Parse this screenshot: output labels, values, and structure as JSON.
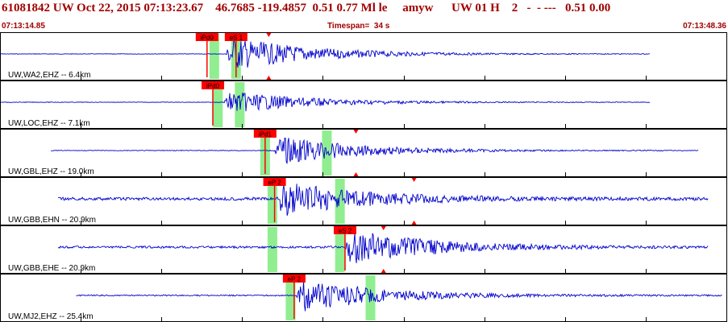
{
  "header": {
    "title": "61081842 UW Oct 22, 2015 07:13:23.67    46.7685 -119.4857  0.51 0.77 Ml le     amyw      UW 01 H    2   -  - ---   0.51 0.00",
    "start_time": "07:13:14.85",
    "timespan": "Timespan=  34 s",
    "end_time": "07:13:48.36"
  },
  "colors": {
    "trace": "#0000cc",
    "header_text": "#a00000",
    "pick_box": "#ff0000",
    "pick_line": "#ff0000",
    "window": "#90ee90",
    "marker": "#ff0000",
    "grid": "#000000",
    "panel_border": "#000000"
  },
  "panels": [
    {
      "label": "UW,WA2,EHZ -- 6.4km",
      "signal_start": 0.0,
      "signal_end": 0.895,
      "noise_amp": 0.012,
      "arrival": 0.31,
      "peak_amp": 0.85,
      "picks": [
        {
          "label": "iPd0",
          "x": 0.285
        },
        {
          "label": "eS 1",
          "x": 0.325
        }
      ],
      "windows": [
        0.295,
        0.325
      ],
      "markers": [
        0.37
      ]
    },
    {
      "label": "UW,LOC,EHZ -- 7.1km",
      "signal_start": 0.0,
      "signal_end": 0.895,
      "noise_amp": 0.012,
      "arrival": 0.308,
      "peak_amp": 0.55,
      "picks": [
        {
          "label": "iPd0",
          "x": 0.293
        }
      ],
      "windows": [
        0.3,
        0.33
      ],
      "markers": []
    },
    {
      "label": "UW,GBL,EHZ -- 19.0km",
      "signal_start": 0.07,
      "signal_end": 0.962,
      "noise_amp": 0.015,
      "arrival": 0.377,
      "peak_amp": 0.7,
      "picks": [
        {
          "label": "iPd1",
          "x": 0.365
        }
      ],
      "windows": [
        0.365,
        0.45
      ],
      "markers": [
        0.49
      ]
    },
    {
      "label": "UW,GBB,EHN -- 20.9km",
      "signal_start": 0.08,
      "signal_end": 0.975,
      "noise_amp": 0.07,
      "arrival": 0.38,
      "peak_amp": 0.85,
      "picks": [
        {
          "label": "eP 2",
          "x": 0.378
        }
      ],
      "windows": [
        0.375,
        0.468
      ],
      "markers": [
        0.57
      ]
    },
    {
      "label": "UW,GBB,EHE -- 20.9km",
      "signal_start": 0.08,
      "signal_end": 0.975,
      "noise_amp": 0.05,
      "arrival": 0.474,
      "peak_amp": 0.85,
      "picks": [
        {
          "label": "eS 2",
          "x": 0.475
        }
      ],
      "windows": [
        0.375,
        0.468
      ],
      "markers": [
        0.528
      ]
    },
    {
      "label": "UW,MJ2,EHZ -- 25.4km",
      "signal_start": 0.105,
      "signal_end": 0.995,
      "noise_amp": 0.03,
      "arrival": 0.408,
      "peak_amp": 0.8,
      "picks": [
        {
          "label": "eP 2",
          "x": 0.405
        }
      ],
      "windows": [
        0.4,
        0.51
      ],
      "markers": []
    }
  ]
}
